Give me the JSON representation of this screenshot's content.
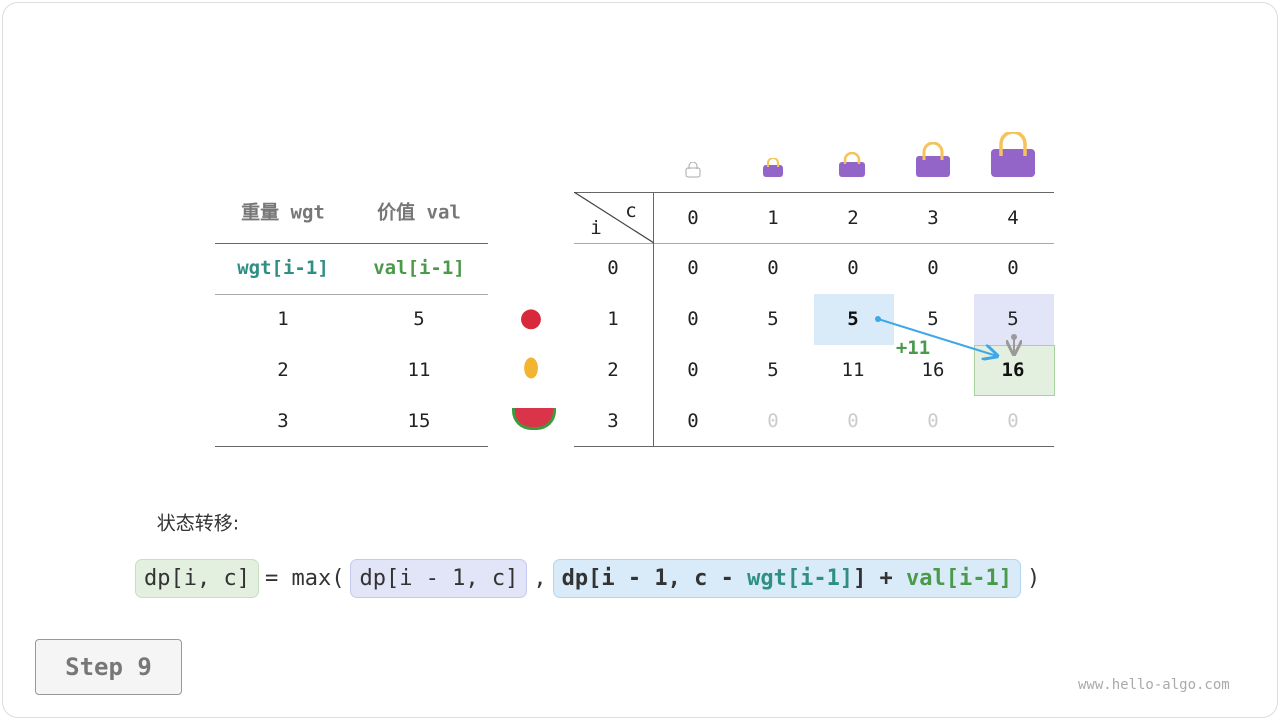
{
  "left_table": {
    "headers": [
      "重量 wgt",
      "价值 val"
    ],
    "subheaders": [
      "wgt[i-1]",
      "val[i-1]"
    ],
    "rows": [
      [
        "1",
        "5"
      ],
      [
        "2",
        "11"
      ],
      [
        "3",
        "15"
      ]
    ]
  },
  "items": [
    "apple",
    "pineapple",
    "watermelon"
  ],
  "dp_table": {
    "corner_i": "i",
    "corner_c": "c",
    "col_headers": [
      "0",
      "1",
      "2",
      "3",
      "4"
    ],
    "row_headers": [
      "0",
      "1",
      "2",
      "3"
    ],
    "rows": [
      [
        "0",
        "0",
        "0",
        "0",
        "0"
      ],
      [
        "0",
        "5",
        "5",
        "5",
        "5"
      ],
      [
        "0",
        "5",
        "11",
        "16",
        "16"
      ],
      [
        "0",
        "0",
        "0",
        "0",
        "0"
      ]
    ]
  },
  "annotation": "+11",
  "label": "状态转移:",
  "formula": {
    "lhs": "dp[i, c]",
    "eq": "= max(",
    "a": "dp[i - 1, c]",
    "comma": ",",
    "b1": "dp[i - 1, c - ",
    "b_wgt": "wgt[i-1]",
    "b2": "] + ",
    "b_val": "val[i-1]",
    "close": ")"
  },
  "step": "Step 9",
  "watermark": "www.hello-algo.com",
  "colors": {
    "teal": "#2f8f83",
    "green": "#4a9a4a",
    "bag": "#9365c9",
    "blue_cell": "#d9ebf8",
    "lavender": "#e2e4f7",
    "green_cell": "#e3f0e0",
    "arrow": "#3ea7e6"
  }
}
